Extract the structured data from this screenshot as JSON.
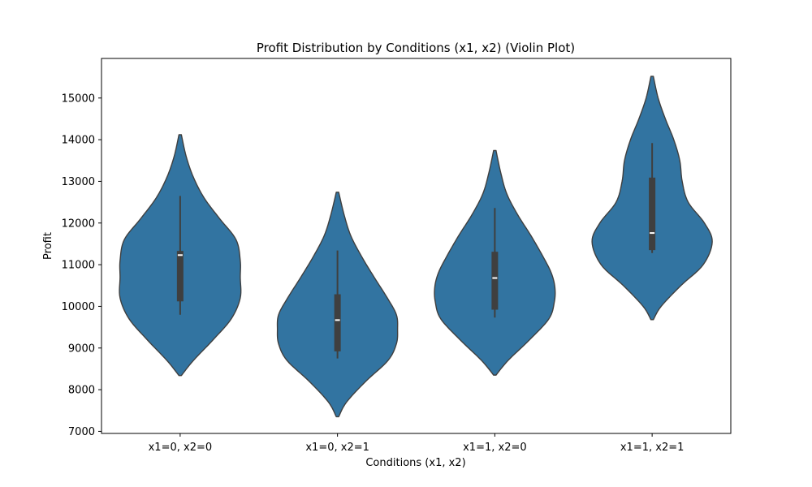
{
  "chart_data": {
    "type": "violin",
    "title": "Profit Distribution by Conditions (x1, x2) (Violin Plot)",
    "xlabel": "Conditions (x1, x2)",
    "ylabel": "Profit",
    "ylim": [
      6950,
      15950
    ],
    "yticks": [
      7000,
      8000,
      9000,
      10000,
      11000,
      12000,
      13000,
      14000,
      15000
    ],
    "categories": [
      "x1=0, x2=0",
      "x1=0, x2=1",
      "x1=1, x2=0",
      "x1=1, x2=1"
    ],
    "color": "#3274a1",
    "series": [
      {
        "category": "x1=0, x2=0",
        "range": [
          8340,
          14120
        ],
        "box": {
          "whisker_low": 9800,
          "q1": 10120,
          "median": 11230,
          "q3": 11330,
          "whisker_high": 12650
        },
        "profile": [
          [
            8340,
            0.02
          ],
          [
            8700,
            0.22
          ],
          [
            9200,
            0.55
          ],
          [
            9700,
            0.85
          ],
          [
            10200,
            1.0
          ],
          [
            10700,
            1.0
          ],
          [
            11100,
            1.0
          ],
          [
            11600,
            0.93
          ],
          [
            12100,
            0.66
          ],
          [
            12600,
            0.4
          ],
          [
            13100,
            0.22
          ],
          [
            13600,
            0.1
          ],
          [
            14120,
            0.02
          ]
        ]
      },
      {
        "category": "x1=0, x2=1",
        "range": [
          7350,
          12740
        ],
        "box": {
          "whisker_low": 8750,
          "q1": 8920,
          "median": 9670,
          "q3": 10290,
          "whisker_high": 11340
        },
        "profile": [
          [
            7350,
            0.02
          ],
          [
            7700,
            0.15
          ],
          [
            8200,
            0.47
          ],
          [
            8700,
            0.84
          ],
          [
            9100,
            0.98
          ],
          [
            9450,
            1.0
          ],
          [
            9800,
            0.98
          ],
          [
            10200,
            0.83
          ],
          [
            10700,
            0.61
          ],
          [
            11200,
            0.4
          ],
          [
            11700,
            0.22
          ],
          [
            12200,
            0.11
          ],
          [
            12740,
            0.02
          ]
        ]
      },
      {
        "category": "x1=1, x2=0",
        "range": [
          8350,
          13740
        ],
        "box": {
          "whisker_low": 9730,
          "q1": 9920,
          "median": 10680,
          "q3": 11310,
          "whisker_high": 12360
        },
        "profile": [
          [
            8350,
            0.02
          ],
          [
            8700,
            0.22
          ],
          [
            9200,
            0.58
          ],
          [
            9700,
            0.9
          ],
          [
            10100,
            0.99
          ],
          [
            10450,
            1.0
          ],
          [
            10800,
            0.94
          ],
          [
            11200,
            0.8
          ],
          [
            11700,
            0.6
          ],
          [
            12200,
            0.38
          ],
          [
            12700,
            0.2
          ],
          [
            13200,
            0.1
          ],
          [
            13740,
            0.02
          ]
        ]
      },
      {
        "category": "x1=1, x2=1",
        "range": [
          9680,
          15520
        ],
        "box": {
          "whisker_low": 11280,
          "q1": 11350,
          "median": 11760,
          "q3": 13090,
          "whisker_high": 13920
        },
        "profile": [
          [
            9680,
            0.02
          ],
          [
            10000,
            0.15
          ],
          [
            10500,
            0.48
          ],
          [
            11000,
            0.85
          ],
          [
            11550,
            1.0
          ],
          [
            12000,
            0.87
          ],
          [
            12500,
            0.6
          ],
          [
            13000,
            0.5
          ],
          [
            13500,
            0.46
          ],
          [
            14000,
            0.36
          ],
          [
            14500,
            0.22
          ],
          [
            15000,
            0.1
          ],
          [
            15520,
            0.02
          ]
        ]
      }
    ]
  }
}
